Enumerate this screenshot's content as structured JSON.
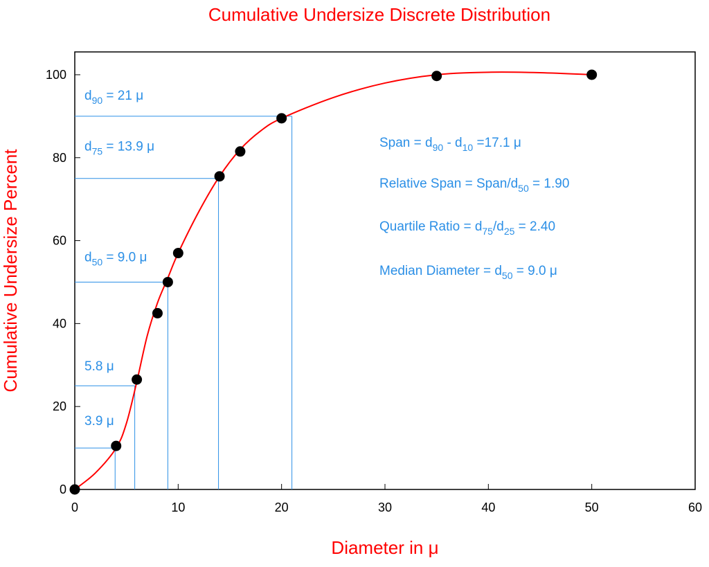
{
  "chart_data": {
    "type": "scatter",
    "title": "Cumulative Undersize Discrete Distribution",
    "x_label": "Diameter in μ",
    "y_label": "Cumulative Undersize Percent",
    "xlim": [
      0,
      60
    ],
    "ylim": [
      0,
      105.5
    ],
    "xticks": [
      0,
      10,
      20,
      30,
      40,
      50,
      60
    ],
    "yticks": [
      0,
      20,
      40,
      60,
      80,
      100
    ],
    "series": [
      {
        "color": "#000000",
        "x": [
          0,
          4,
          6,
          8,
          9,
          10,
          14,
          16,
          20,
          35,
          50
        ],
        "values": [
          0,
          10.5,
          26.5,
          42.5,
          50,
          57,
          75.5,
          81.5,
          89.5,
          99.7,
          100
        ]
      }
    ],
    "curve": {
      "color": "#ff0000",
      "x": [
        0,
        2,
        4,
        5,
        6,
        7,
        8,
        9,
        10,
        12,
        14,
        16,
        18,
        20,
        25,
        30,
        35,
        40,
        45,
        50
      ],
      "values": [
        0,
        4,
        10,
        16,
        26,
        37,
        45,
        51,
        57,
        67,
        75.5,
        82,
        86.5,
        89.5,
        94.5,
        98,
        100,
        100.6,
        100.5,
        100
      ]
    },
    "reference_lines": {
      "color": "#2b8fe6",
      "items": [
        {
          "x": 3.9,
          "y": 10,
          "label": [
            {
              "text": "3.9 μ"
            }
          ]
        },
        {
          "x": 5.8,
          "y": 25,
          "label": [
            {
              "text": "5.8 μ"
            }
          ]
        },
        {
          "x": 9.0,
          "y": 50,
          "label": [
            {
              "text": "d"
            },
            {
              "text": "50",
              "sub": true
            },
            {
              "text": " = 9.0 μ"
            }
          ]
        },
        {
          "x": 13.9,
          "y": 75,
          "label": [
            {
              "text": "d"
            },
            {
              "text": "75",
              "sub": true
            },
            {
              "text": " = 13.9 μ"
            }
          ]
        },
        {
          "x": 21,
          "y": 90,
          "label": [
            {
              "text": "d"
            },
            {
              "text": "90",
              "sub": true
            },
            {
              "text": " = 21 μ"
            }
          ]
        }
      ]
    },
    "annotations": [
      [
        {
          "text": "Span = d"
        },
        {
          "text": "90",
          "sub": true
        },
        {
          "text": " - d"
        },
        {
          "text": "10",
          "sub": true
        },
        {
          "text": " =17.1 μ"
        }
      ],
      [
        {
          "text": "Relative Span = Span/d"
        },
        {
          "text": "50",
          "sub": true
        },
        {
          "text": " = 1.90"
        }
      ],
      [
        {
          "text": "Quartile Ratio = d"
        },
        {
          "text": "75",
          "sub": true
        },
        {
          "text": "/d"
        },
        {
          "text": "25",
          "sub": true
        },
        {
          "text": " = 2.40"
        }
      ],
      [
        {
          "text": "Median Diameter = d"
        },
        {
          "text": "50",
          "sub": true
        },
        {
          "text": " = 9.0 μ"
        }
      ]
    ]
  }
}
